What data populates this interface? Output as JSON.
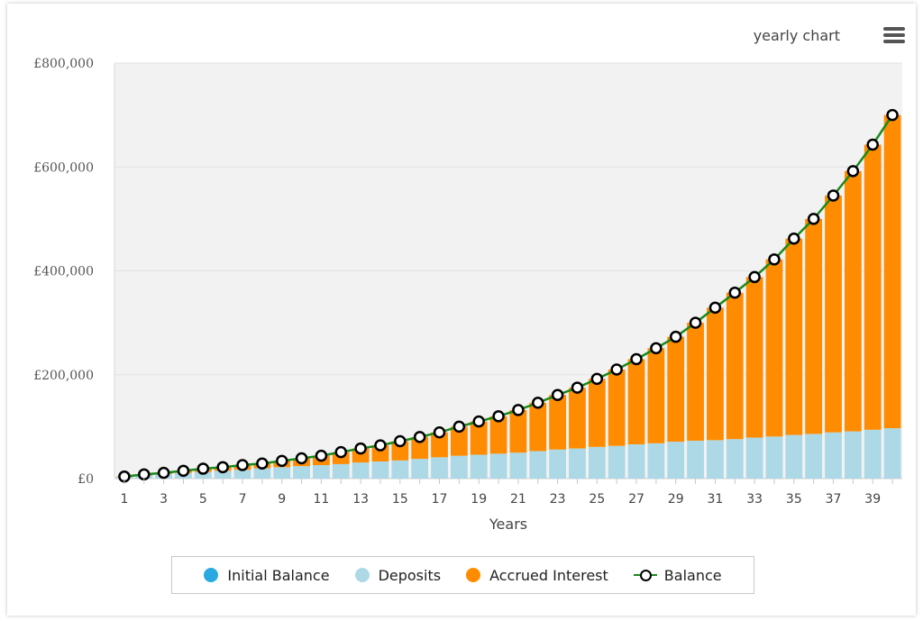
{
  "header": {
    "title": "yearly chart",
    "menu_icon": "hamburger-menu-icon"
  },
  "colors": {
    "initial": "#2aa9e0",
    "deposits": "#add8e6",
    "interest": "#ff8c00",
    "balance_line": "#1a8a1a",
    "balance_marker": "#000000",
    "plot_bg": "#f2f2f2"
  },
  "chart_data": {
    "type": "bar",
    "stacked": true,
    "xlabel": "Years",
    "ylabel": "",
    "ylim": [
      0,
      800000
    ],
    "yticks": [
      0,
      200000,
      400000,
      600000,
      800000
    ],
    "ytick_labels": [
      "£0",
      "£200,000",
      "£400,000",
      "£600,000",
      "£800,000"
    ],
    "categories": [
      1,
      2,
      3,
      4,
      5,
      6,
      7,
      8,
      9,
      10,
      11,
      12,
      13,
      14,
      15,
      16,
      17,
      18,
      19,
      20,
      21,
      22,
      23,
      24,
      25,
      26,
      27,
      28,
      29,
      30,
      31,
      32,
      33,
      34,
      35,
      36,
      37,
      38,
      39,
      40
    ],
    "xtick_labels": [
      "1",
      "3",
      "5",
      "7",
      "9",
      "11",
      "13",
      "15",
      "17",
      "19",
      "21",
      "23",
      "25",
      "27",
      "29",
      "31",
      "33",
      "35",
      "37",
      "39"
    ],
    "series": [
      {
        "name": "Initial Balance",
        "type": "bar",
        "values": [
          0,
          0,
          0,
          0,
          0,
          0,
          0,
          0,
          0,
          0,
          0,
          0,
          0,
          0,
          0,
          0,
          0,
          0,
          0,
          0,
          0,
          0,
          0,
          0,
          0,
          0,
          0,
          0,
          0,
          0,
          0,
          0,
          0,
          0,
          0,
          0,
          0,
          0,
          0,
          0
        ]
      },
      {
        "name": "Deposits",
        "type": "bar",
        "values": [
          3000,
          6000,
          9000,
          11000,
          13000,
          15000,
          17000,
          20000,
          22000,
          24000,
          26000,
          28000,
          31000,
          33000,
          35000,
          38000,
          41000,
          44000,
          46000,
          48000,
          50000,
          53000,
          56000,
          58000,
          61000,
          63000,
          66000,
          68000,
          71000,
          73000,
          74000,
          76000,
          79000,
          81000,
          84000,
          86000,
          89000,
          91000,
          94000,
          97000
        ]
      },
      {
        "name": "Accrued Interest",
        "type": "bar",
        "values": [
          1000,
          2000,
          2000,
          4000,
          6000,
          7000,
          9000,
          9000,
          12000,
          15000,
          18000,
          23000,
          27000,
          31000,
          37000,
          42000,
          48000,
          56000,
          64000,
          72000,
          82000,
          93000,
          105000,
          117000,
          131000,
          147000,
          164000,
          183000,
          202000,
          227000,
          255000,
          282000,
          309000,
          341000,
          378000,
          414000,
          456000,
          501000,
          549000,
          603000
        ]
      },
      {
        "name": "Balance",
        "type": "line",
        "values": [
          4000,
          8000,
          11000,
          15000,
          19000,
          22000,
          26000,
          29000,
          34000,
          39000,
          44000,
          51000,
          58000,
          64000,
          72000,
          80000,
          89000,
          100000,
          110000,
          120000,
          132000,
          146000,
          161000,
          175000,
          192000,
          210000,
          230000,
          251000,
          273000,
          300000,
          329000,
          358000,
          388000,
          422000,
          462000,
          500000,
          545000,
          592000,
          643000,
          700000
        ]
      }
    ],
    "grid": true,
    "legend_position": "bottom"
  }
}
